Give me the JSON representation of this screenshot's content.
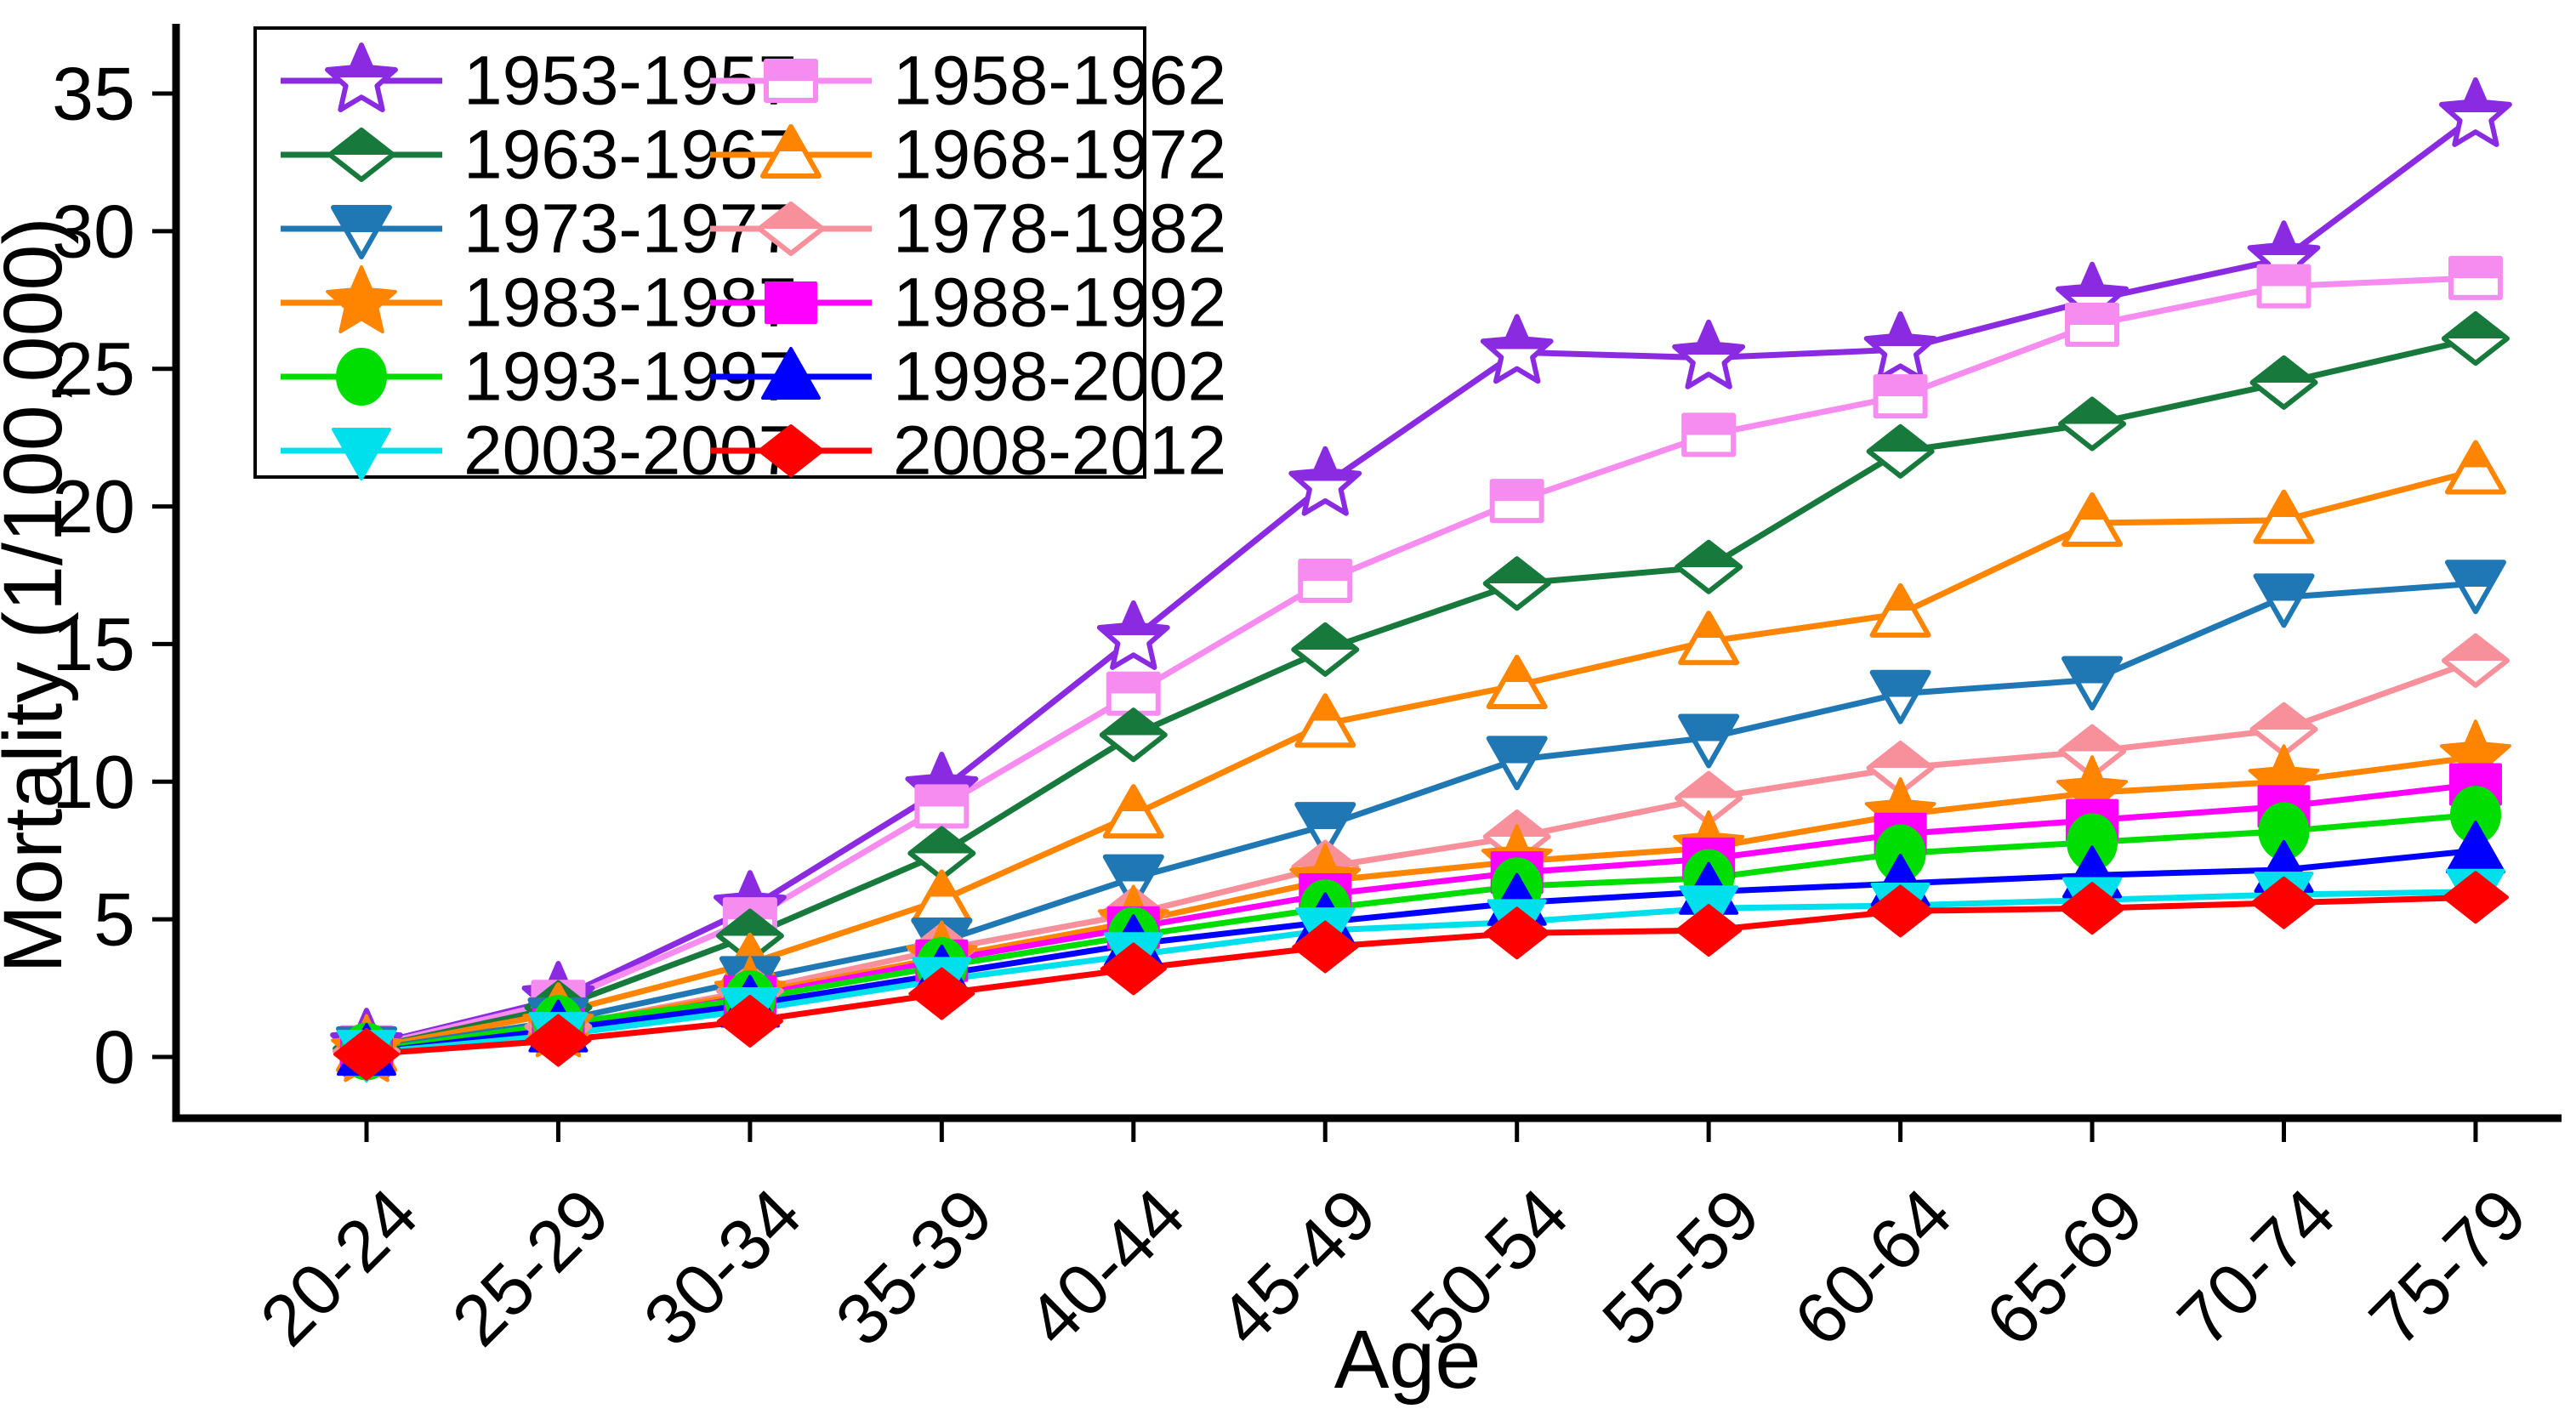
{
  "figure": {
    "background": "#ffffff",
    "axis_color": "#000000"
  },
  "chart_data": {
    "type": "line",
    "title": "",
    "xlabel": "Age",
    "ylabel": "Mortality (1/100,000)",
    "categories": [
      "20-24",
      "25-29",
      "30-34",
      "35-39",
      "40-44",
      "45-49",
      "50-54",
      "55-59",
      "60-64",
      "65-69",
      "70-74",
      "75-79"
    ],
    "y_ticks": [
      0,
      5,
      10,
      15,
      20,
      25,
      30,
      35
    ],
    "ylim": [
      0,
      35
    ],
    "grid": false,
    "legend_position": "top-left",
    "legend_columns": 2,
    "series": [
      {
        "name": "1953-1957",
        "color": "#8a2be2",
        "marker": "star",
        "fill": "half",
        "values": [
          0.4,
          2.1,
          5.4,
          9.7,
          15.2,
          20.8,
          25.6,
          25.4,
          25.7,
          27.5,
          29.0,
          34.2
        ]
      },
      {
        "name": "1958-1962",
        "color": "#f78cf0",
        "marker": "square",
        "fill": "half",
        "values": [
          0.35,
          2.0,
          5.0,
          9.1,
          13.2,
          17.3,
          20.2,
          22.6,
          24.0,
          26.6,
          28.0,
          28.3
        ]
      },
      {
        "name": "1963-1967",
        "color": "#177a3c",
        "marker": "diamond",
        "fill": "half",
        "values": [
          0.3,
          1.8,
          4.4,
          7.4,
          11.7,
          14.8,
          17.2,
          17.8,
          22.0,
          23.0,
          24.5,
          26.1
        ]
      },
      {
        "name": "1968-1972",
        "color": "#ff8400",
        "marker": "triangle-up",
        "fill": "half",
        "values": [
          0.3,
          1.6,
          3.4,
          5.7,
          8.8,
          12.1,
          13.5,
          15.1,
          16.1,
          19.4,
          19.5,
          21.3
        ]
      },
      {
        "name": "1973-1977",
        "color": "#1f77b4",
        "marker": "triangle-down",
        "fill": "half",
        "values": [
          0.25,
          1.3,
          2.8,
          4.2,
          6.5,
          8.4,
          10.8,
          11.6,
          13.2,
          13.7,
          16.7,
          17.2
        ]
      },
      {
        "name": "1978-1982",
        "color": "#f8909c",
        "marker": "diamond",
        "fill": "half",
        "values": [
          0.2,
          1.1,
          2.4,
          3.9,
          5.2,
          6.9,
          8.0,
          9.4,
          10.5,
          11.1,
          11.9,
          14.4
        ]
      },
      {
        "name": "1983-1987",
        "color": "#ff8400",
        "marker": "star",
        "fill": "solid",
        "values": [
          0.2,
          1.1,
          2.3,
          3.6,
          4.9,
          6.4,
          7.1,
          7.6,
          8.8,
          9.6,
          10.0,
          10.9
        ]
      },
      {
        "name": "1988-1992",
        "color": "#ff00ff",
        "marker": "square",
        "fill": "solid",
        "values": [
          0.2,
          1.0,
          2.2,
          3.5,
          4.7,
          5.9,
          6.7,
          7.2,
          8.1,
          8.6,
          9.1,
          9.9
        ]
      },
      {
        "name": "1993-1997",
        "color": "#00dd00",
        "marker": "circle",
        "fill": "solid",
        "values": [
          0.2,
          1.2,
          2.1,
          3.3,
          4.4,
          5.4,
          6.2,
          6.5,
          7.4,
          7.8,
          8.2,
          8.8
        ]
      },
      {
        "name": "1998-2002",
        "color": "#0000ff",
        "marker": "triangle-up",
        "fill": "solid",
        "values": [
          0.15,
          1.0,
          1.9,
          3.0,
          4.1,
          4.9,
          5.6,
          6.0,
          6.3,
          6.6,
          6.8,
          7.5
        ]
      },
      {
        "name": "2003-2007",
        "color": "#00e0ec",
        "marker": "triangle-down",
        "fill": "solid",
        "values": [
          0.15,
          0.8,
          1.7,
          2.8,
          3.7,
          4.6,
          4.9,
          5.4,
          5.5,
          5.7,
          5.9,
          6.0
        ]
      },
      {
        "name": "2008-2012",
        "color": "#ff0000",
        "marker": "diamond",
        "fill": "solid",
        "values": [
          0.1,
          0.6,
          1.3,
          2.3,
          3.2,
          4.0,
          4.5,
          4.6,
          5.3,
          5.4,
          5.6,
          5.8
        ]
      }
    ]
  }
}
